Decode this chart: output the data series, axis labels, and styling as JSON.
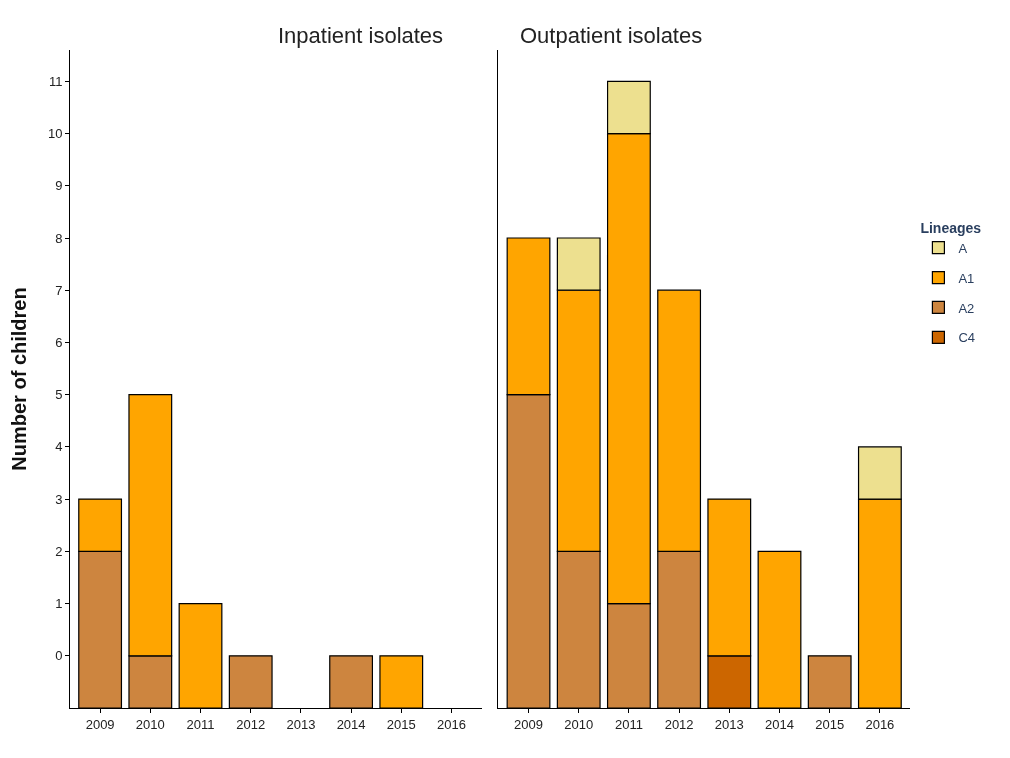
{
  "chart_data": [
    {
      "type": "bar",
      "title": "Inpatient isolates",
      "ylabel": "Number of children",
      "categories": [
        "2009",
        "2010",
        "2011",
        "2012",
        "2013",
        "2014",
        "2015",
        "2016"
      ],
      "ylim": [
        -1,
        11.6
      ],
      "yticks": [
        0,
        1,
        2,
        3,
        4,
        5,
        6,
        7,
        8,
        9,
        10,
        11
      ],
      "legend": "right",
      "series": [
        {
          "name": "A2",
          "color": "#cd853f",
          "base": [
            -1,
            -1,
            null,
            -1,
            null,
            -1,
            null,
            null
          ],
          "values": [
            3,
            1,
            null,
            1,
            null,
            1,
            null,
            null
          ]
        },
        {
          "name": "A1",
          "color": "#ffa500",
          "base": [
            2,
            0,
            -1,
            null,
            null,
            null,
            -1,
            null
          ],
          "values": [
            1,
            5,
            2,
            null,
            null,
            null,
            1,
            null
          ]
        }
      ]
    },
    {
      "type": "bar",
      "title": "Outpatient isolates",
      "categories": [
        "2009",
        "2010",
        "2011",
        "2012",
        "2013",
        "2014",
        "2015",
        "2016"
      ],
      "ylim": [
        -1,
        11.6
      ],
      "yticks": [
        0,
        1,
        2,
        3,
        4,
        5,
        6,
        7,
        8,
        9,
        10,
        11
      ],
      "legend": "right",
      "legend_title": "Lineages",
      "tick_labels": "x",
      "series": [
        {
          "name": "C4",
          "color": "#cc6600",
          "base": [
            null,
            null,
            null,
            null,
            -1,
            null,
            null,
            null
          ],
          "values": [
            null,
            null,
            null,
            null,
            1,
            null,
            null,
            null
          ]
        },
        {
          "name": "A2",
          "color": "#cd853f",
          "base": [
            -1,
            -1,
            -1,
            -1,
            null,
            null,
            -1,
            null
          ],
          "values": [
            6,
            3,
            2,
            3,
            null,
            null,
            1,
            null
          ]
        },
        {
          "name": "A1",
          "color": "#ffa500",
          "base": [
            5,
            2,
            1,
            2,
            0,
            -1,
            null,
            -1
          ],
          "values": [
            3,
            5,
            9,
            5,
            3,
            3,
            null,
            4
          ]
        },
        {
          "name": "A",
          "color": "#ede08f",
          "base": [
            null,
            7,
            10,
            null,
            null,
            null,
            null,
            3
          ],
          "values": [
            null,
            1,
            1,
            null,
            null,
            null,
            null,
            1
          ]
        }
      ]
    }
  ]
}
